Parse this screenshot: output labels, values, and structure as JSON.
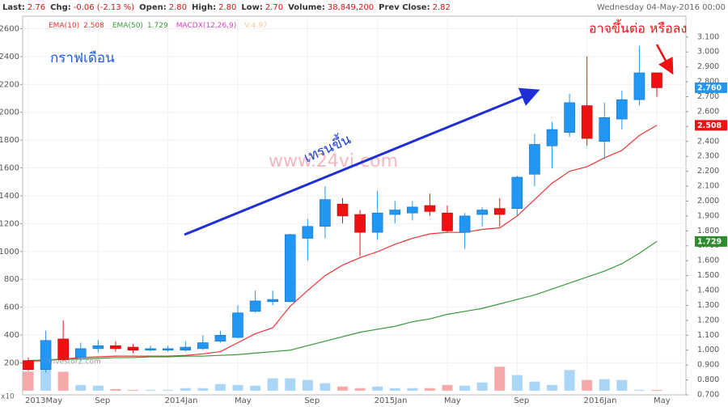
{
  "chart_data": {
    "type": "candlestick",
    "header": {
      "items": [
        {
          "label": "Last:",
          "value": "2.76"
        },
        {
          "label": "Chg:",
          "value": "-0.06 (-2.13 %)"
        },
        {
          "label": "Open:",
          "value": "2.80"
        },
        {
          "label": "High:",
          "value": "2.80"
        },
        {
          "label": "Low:",
          "value": "2.70"
        },
        {
          "label": "Volume:",
          "value": "38,849,200"
        },
        {
          "label": "Prev Close:",
          "value": "2.82"
        }
      ],
      "date": "Wednesday 04-May-2016 00:00"
    },
    "indicators": [
      {
        "name": "MACDX(12,26,9)",
        "color": "#e040c0"
      },
      {
        "name": "V:4.97",
        "color": "#f5c89a"
      }
    ],
    "annotations": {
      "period": "กราฟเดือน",
      "trend": "เทรนขึ้น",
      "outlook": "อาจขึ้นต่อ หรือลง",
      "watermark": "www.24vi.com",
      "source": "investorZ.com",
      "volume_unit": "x10"
    },
    "categories": [
      "2013May",
      null,
      null,
      null,
      "Sep",
      null,
      null,
      null,
      "2014Jan",
      null,
      null,
      null,
      "May",
      null,
      null,
      null,
      "Sep",
      null,
      null,
      null,
      "2015Jan",
      null,
      null,
      null,
      "May",
      null,
      null,
      null,
      "Sep",
      null,
      null,
      null,
      "2016Jan",
      null,
      null,
      null,
      "May"
    ],
    "ohlc": {
      "open": [
        0.93,
        0.87,
        1.075,
        0.95,
        1.01,
        1.03,
        1.02,
        1.0,
        1.0,
        1.0,
        1.01,
        1.06,
        1.085,
        1.26,
        1.325,
        1.325,
        1.75,
        1.83,
        1.98,
        1.91,
        1.79,
        1.91,
        1.92,
        1.97,
        1.92,
        1.79,
        1.91,
        1.95,
        1.95,
        2.18,
        2.37,
        2.46,
        2.64,
        2.4,
        2.55,
        2.68,
        2.86
      ],
      "high": [
        0.95,
        1.13,
        1.2,
        1.05,
        1.07,
        1.06,
        1.04,
        1.03,
        1.03,
        1.06,
        1.1,
        1.13,
        1.3,
        1.4,
        1.4,
        1.78,
        1.88,
        2.1,
        2.02,
        1.94,
        2.07,
        2.0,
        2.0,
        2.05,
        1.97,
        1.92,
        1.96,
        2.02,
        2.17,
        2.45,
        2.53,
        2.72,
        2.97,
        2.66,
        2.74,
        3.04,
        2.86
      ],
      "low": [
        0.86,
        0.85,
        0.925,
        0.93,
        0.985,
        0.99,
        0.98,
        0.99,
        0.99,
        0.99,
        1.0,
        1.05,
        1.08,
        1.25,
        1.3,
        1.32,
        1.6,
        1.75,
        1.85,
        1.63,
        1.74,
        1.85,
        1.87,
        1.9,
        1.79,
        1.68,
        1.83,
        1.83,
        1.9,
        2.1,
        2.22,
        2.43,
        2.37,
        2.28,
        2.48,
        2.64,
        2.7
      ],
      "close": [
        0.87,
        1.065,
        0.935,
        1.01,
        1.03,
        1.01,
        1.0,
        1.01,
        1.01,
        1.02,
        1.05,
        1.1,
        1.25,
        1.33,
        1.34,
        1.775,
        1.83,
        2.01,
        1.9,
        1.79,
        1.92,
        1.94,
        1.96,
        1.93,
        1.8,
        1.9,
        1.94,
        1.91,
        2.16,
        2.38,
        2.48,
        2.66,
        2.42,
        2.56,
        2.68,
        2.86,
        2.76
      ]
    },
    "up_color": "#2196f3",
    "down_color": "#ee1111",
    "volume": {
      "axis": "y2",
      "values": [
        136,
        166,
        136,
        41,
        36,
        12,
        6,
        6,
        6,
        18,
        18,
        47,
        41,
        36,
        89,
        89,
        77,
        53,
        30,
        18,
        30,
        18,
        18,
        18,
        41,
        36,
        59,
        172,
        112,
        65,
        41,
        148,
        77,
        83,
        77,
        6,
        6
      ],
      "up_color": "#a9d5f7",
      "down_color": "#f5a9a9"
    },
    "series": [
      {
        "name": "EMA(10)",
        "legend_value": "2.508",
        "color": "#ee3333",
        "values": [
          0.925,
          0.93,
          0.94,
          0.95,
          0.955,
          0.96,
          0.96,
          0.96,
          0.96,
          0.965,
          0.975,
          0.99,
          1.05,
          1.11,
          1.15,
          1.295,
          1.4,
          1.5,
          1.57,
          1.62,
          1.66,
          1.71,
          1.75,
          1.78,
          1.79,
          1.79,
          1.81,
          1.82,
          1.9,
          2.01,
          2.12,
          2.2,
          2.23,
          2.29,
          2.34,
          2.44,
          2.508
        ]
      },
      {
        "name": "EMA(50)",
        "legend_value": "1.729",
        "color": "#3a9a3a",
        "values": [
          0.93,
          0.935,
          0.94,
          0.94,
          0.945,
          0.95,
          0.95,
          0.955,
          0.955,
          0.96,
          0.96,
          0.965,
          0.97,
          0.98,
          0.99,
          1.0,
          1.03,
          1.06,
          1.09,
          1.12,
          1.14,
          1.16,
          1.19,
          1.21,
          1.24,
          1.26,
          1.28,
          1.31,
          1.34,
          1.37,
          1.41,
          1.45,
          1.49,
          1.53,
          1.58,
          1.65,
          1.729
        ]
      }
    ],
    "price_tags": [
      {
        "value": 2.76,
        "label": "2.760",
        "color": "#2196f3"
      },
      {
        "value": 2.508,
        "label": "2.508",
        "color": "#ee1111"
      },
      {
        "value": 1.729,
        "label": "1.729",
        "color": "#2e8b2e"
      }
    ],
    "ylim": [
      0.7,
      3.24
    ],
    "yticks": [
      {
        "value": 0.7,
        "label": "0.700"
      },
      {
        "value": 0.8,
        "label": "0.800"
      },
      {
        "value": 0.9,
        "label": "0.900"
      },
      {
        "value": 1.0,
        "label": "1.000"
      },
      {
        "value": 1.1,
        "label": "1.100"
      },
      {
        "value": 1.2,
        "label": "1.200"
      },
      {
        "value": 1.3,
        "label": "1.300"
      },
      {
        "value": 1.4,
        "label": "1.400"
      },
      {
        "value": 1.5,
        "label": "1.500"
      },
      {
        "value": 1.6,
        "label": "1.600"
      },
      {
        "value": 1.7,
        "label": "1.700"
      },
      {
        "value": 1.8,
        "label": "1.800"
      },
      {
        "value": 1.9,
        "label": "1.900"
      },
      {
        "value": 2.0,
        "label": "2.000"
      },
      {
        "value": 2.1,
        "label": "2.100"
      },
      {
        "value": 2.2,
        "label": "2.200"
      },
      {
        "value": 2.3,
        "label": "2.300"
      },
      {
        "value": 2.4,
        "label": "2.400"
      },
      {
        "value": 2.5,
        "label": "2.500"
      },
      {
        "value": 2.6,
        "label": "2.600"
      },
      {
        "value": 2.7,
        "label": "2.700"
      },
      {
        "value": 2.8,
        "label": "2.800"
      },
      {
        "value": 2.9,
        "label": "2.900"
      },
      {
        "value": 3.0,
        "label": "3.000"
      },
      {
        "value": 3.1,
        "label": "3.100"
      }
    ],
    "y2lim": [
      -30,
      2690
    ],
    "y2ticks": [
      200,
      400,
      600,
      800,
      1000,
      1200,
      1400,
      1600,
      1800,
      2000,
      2200,
      2400,
      2600
    ],
    "grid": true
  }
}
